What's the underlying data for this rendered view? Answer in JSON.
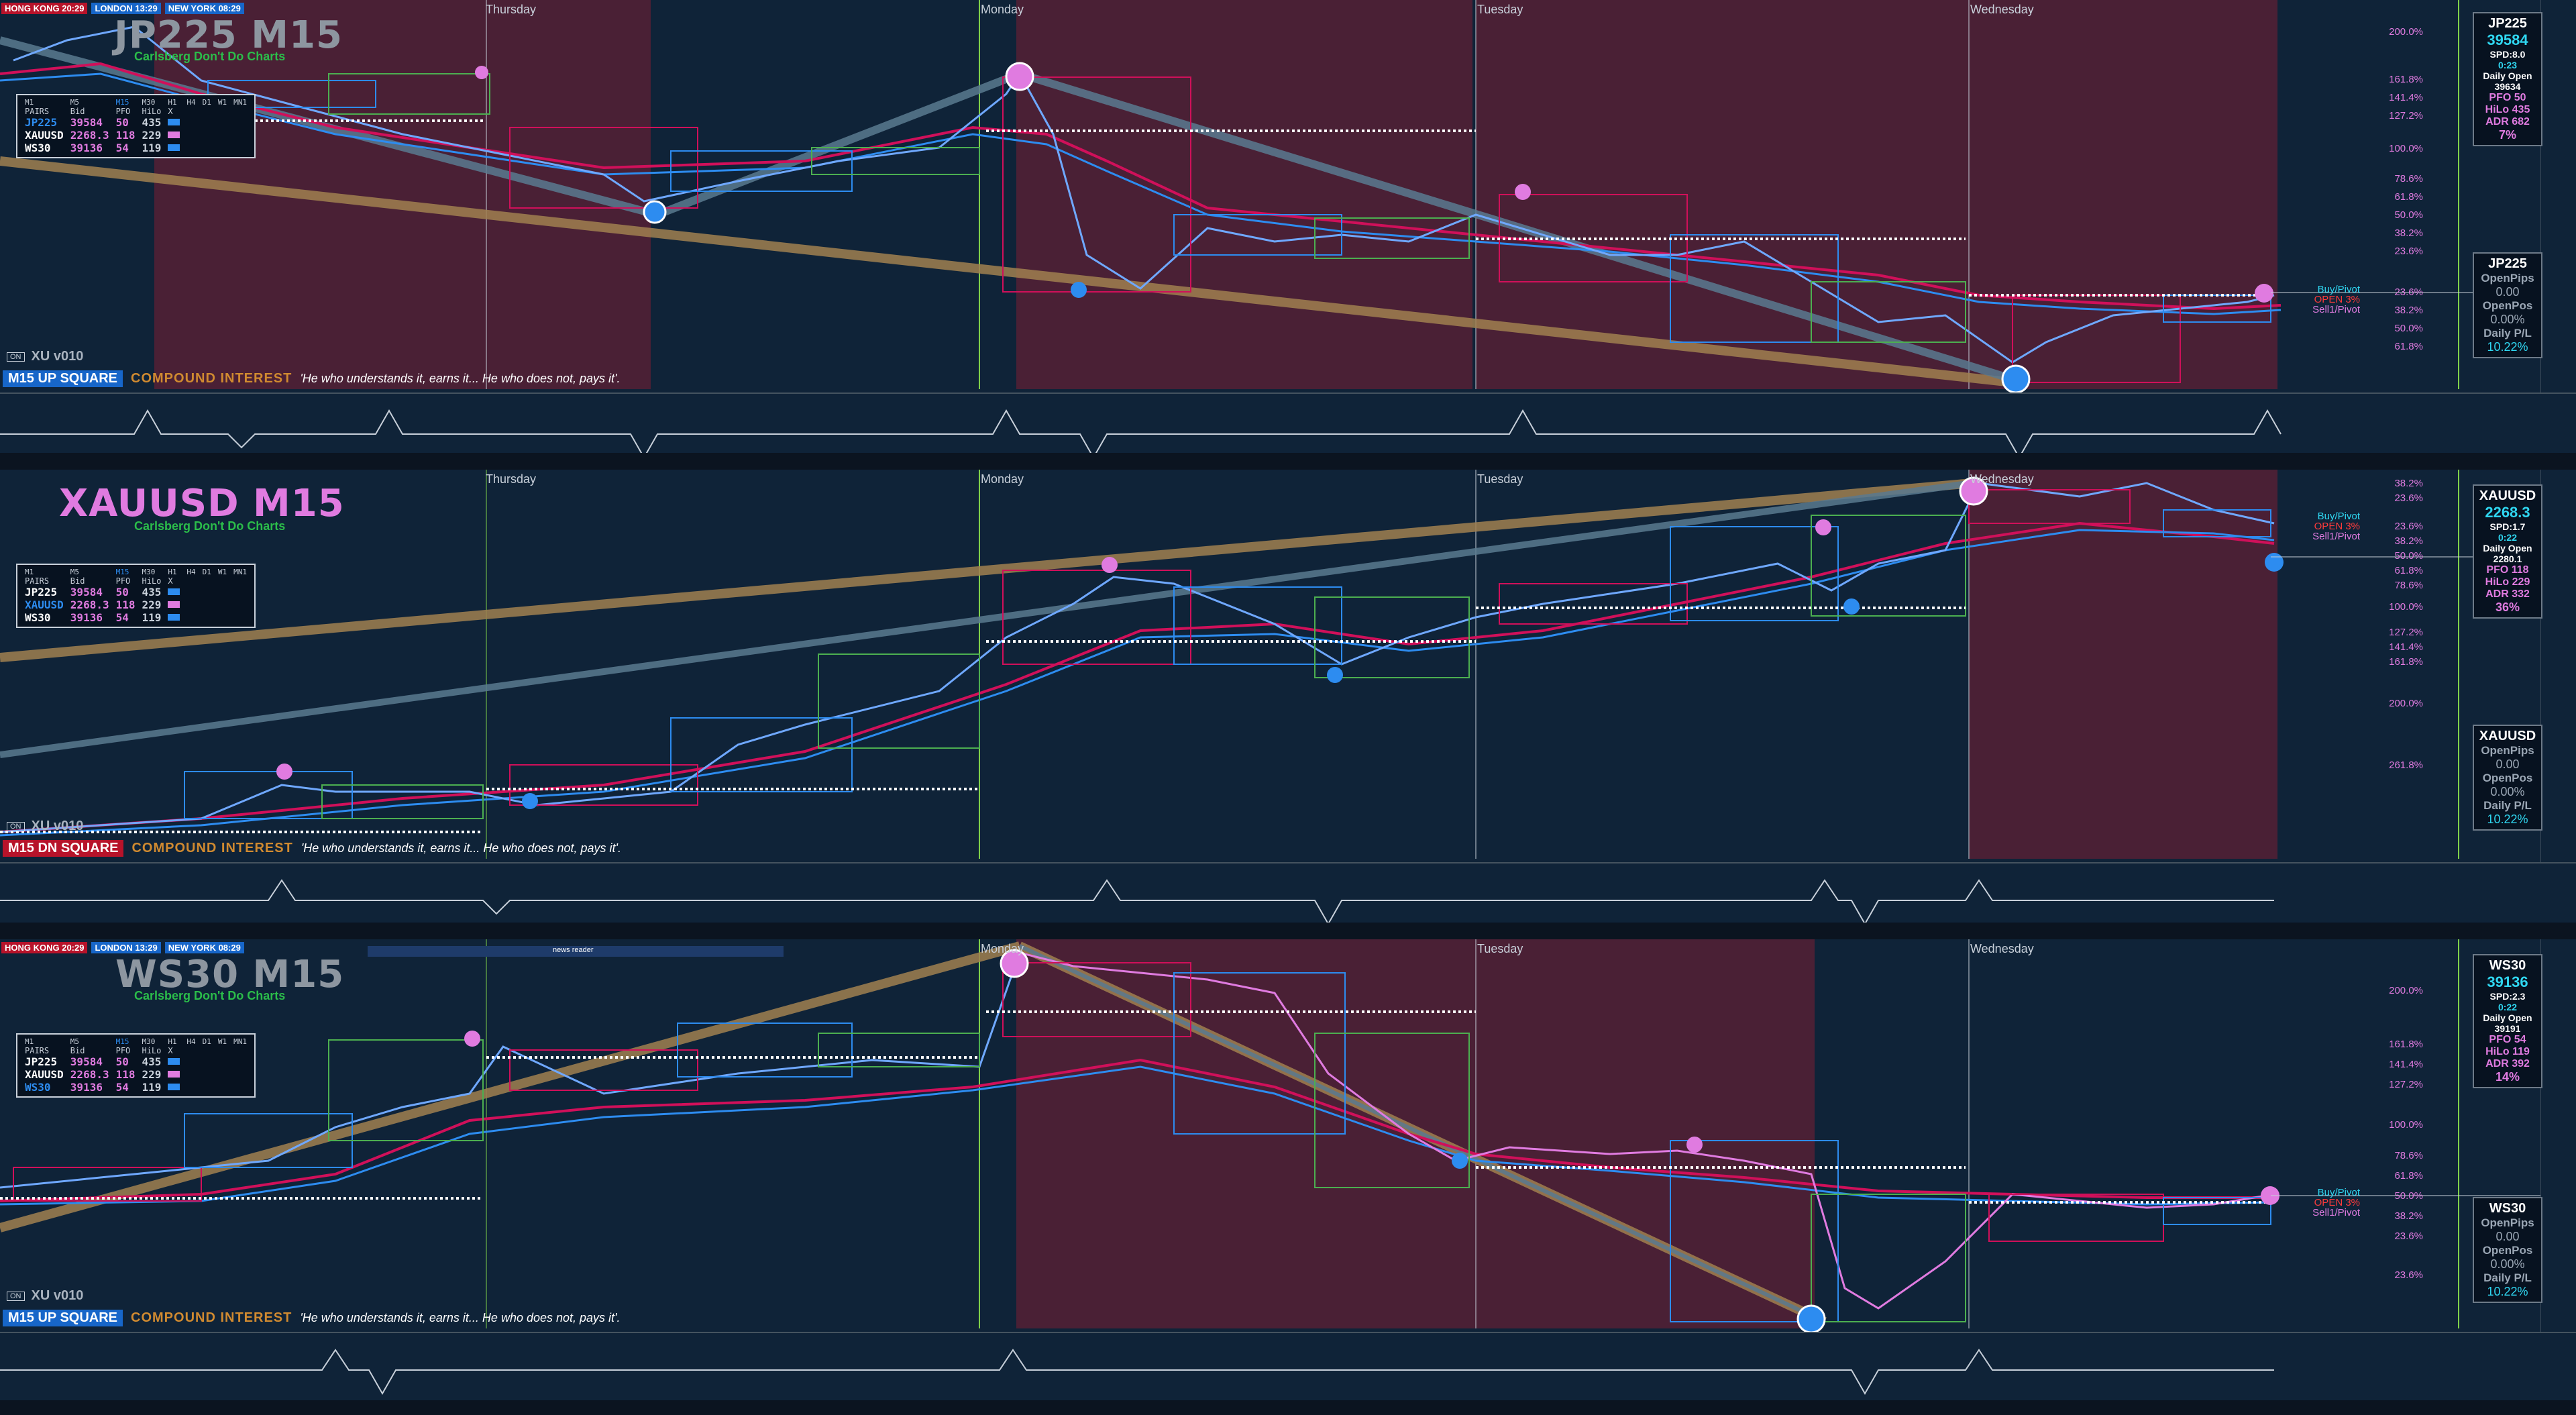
{
  "sessions": [
    {
      "label": "HONG KONG 20:29",
      "type": "hk"
    },
    {
      "label": "LONDON  13:29",
      "type": "ln"
    },
    {
      "label": "NEW YORK 08:29",
      "type": "ny"
    }
  ],
  "days": [
    "Thursday",
    "Monday",
    "Tuesday",
    "Wednesday"
  ],
  "pairtable": {
    "timeframes": [
      "M1",
      "M5",
      "M15",
      "M30",
      "H1",
      "H4",
      "D1",
      "W1",
      "MN1"
    ],
    "headers": [
      "PAIRS",
      "Bid",
      "PFO",
      "HiLo",
      "X"
    ],
    "rows": [
      {
        "pair": "JP225",
        "bid": "39584",
        "pfo": "50",
        "hilo": "435",
        "color": "#2d8cf0"
      },
      {
        "pair": "XAUUSD",
        "bid": "2268.3",
        "pfo": "118",
        "hilo": "229",
        "color": "#e07be0"
      },
      {
        "pair": "WS30",
        "bid": "39136",
        "pfo": "54",
        "hilo": "119",
        "color": "#2d8cf0"
      }
    ]
  },
  "panels": [
    {
      "title": "JP225 M15",
      "subtitle": "Carlsberg Don't Do Charts",
      "title_color": "#8d96a0",
      "square_label": "M15  UP SQUARE",
      "square_color": "#1766c9",
      "version": "XU v010",
      "on": "ON",
      "info": {
        "symbol": "JP225",
        "price": "39584",
        "spd": "SPD:8.0",
        "time": "0:23",
        "daily_open_label": "Daily Open",
        "daily_open": "39634",
        "pfo": "PFO   50",
        "hilo": "HiLo  435",
        "adr": "ADR 682",
        "pct": "7%"
      },
      "open": {
        "symbol": "JP225",
        "openpips_label": "OpenPips",
        "openpips": "0.00",
        "openpos_label": "OpenPos",
        "openpos": "0.00%",
        "daily_pl_label": "Daily P/L",
        "daily_pl": "10.22%"
      },
      "fibs": [
        "200.0%",
        "161.8%",
        "141.4%",
        "127.2%",
        "100.0%",
        "78.6%",
        "61.8%",
        "50.0%",
        "38.2%",
        "23.6%",
        "23.6%",
        "38.2%",
        "50.0%",
        "61.8%"
      ]
    },
    {
      "title": "XAUUSD M15",
      "subtitle": "Carlsberg Don't Do Charts",
      "title_color": "#e07be0",
      "square_label": "M15  DN SQUARE",
      "square_color": "#b7132a",
      "version": "XU v010",
      "on": "ON",
      "info": {
        "symbol": "XAUUSD",
        "price": "2268.3",
        "spd": "SPD:1.7",
        "time": "0:22",
        "daily_open_label": "Daily Open",
        "daily_open": "2280.1",
        "pfo": "PFO 118",
        "hilo": "HiLo 229",
        "adr": "ADR 332",
        "pct": "36%"
      },
      "open": {
        "symbol": "XAUUSD",
        "openpips_label": "OpenPips",
        "openpips": "0.00",
        "openpos_label": "OpenPos",
        "openpos": "0.00%",
        "daily_pl_label": "Daily P/L",
        "daily_pl": "10.22%"
      },
      "fibs": [
        "38.2%",
        "23.6%",
        "23.6%",
        "38.2%",
        "50.0%",
        "61.8%",
        "78.6%",
        "100.0%",
        "127.2%",
        "141.4%",
        "161.8%",
        "200.0%",
        "261.8%"
      ]
    },
    {
      "title": "WS30 M15",
      "subtitle": "Carlsberg Don't Do Charts",
      "title_color": "#8d96a0",
      "square_label": "M15  UP SQUARE",
      "square_color": "#1766c9",
      "version": "XU v010",
      "on": "ON",
      "info": {
        "symbol": "WS30",
        "price": "39136",
        "spd": "SPD:2.3",
        "time": "0:22",
        "daily_open_label": "Daily Open",
        "daily_open": "39191",
        "pfo": "PFO   54",
        "hilo": "HiLo  119",
        "adr": "ADR 392",
        "pct": "14%"
      },
      "open": {
        "symbol": "WS30",
        "openpips_label": "OpenPips",
        "openpips": "0.00",
        "openpos_label": "OpenPos",
        "openpos": "0.00%",
        "daily_pl_label": "Daily P/L",
        "daily_pl": "10.22%"
      },
      "fibs": [
        "200.0%",
        "161.8%",
        "141.4%",
        "127.2%",
        "100.0%",
        "78.6%",
        "61.8%",
        "50.0%",
        "38.2%",
        "23.6%",
        "23.6%"
      ]
    }
  ],
  "compound_interest": "COMPOUND INTEREST",
  "quote": "'He who understands it, earns it... He who does not, pays it'.",
  "pivot": {
    "buy": "Buy/Pivot",
    "open": "OPEN 3%",
    "sell": "Sell1/Pivot"
  },
  "news_label": "news reader",
  "colors": {
    "bg": "#0f2338",
    "pink_zone": "#4a2035",
    "blue": "#2d8cf0",
    "pink": "#e07be0",
    "red_ma": "#d0105a",
    "tan_line": "#a08050",
    "steel_line": "#5a7a90"
  }
}
